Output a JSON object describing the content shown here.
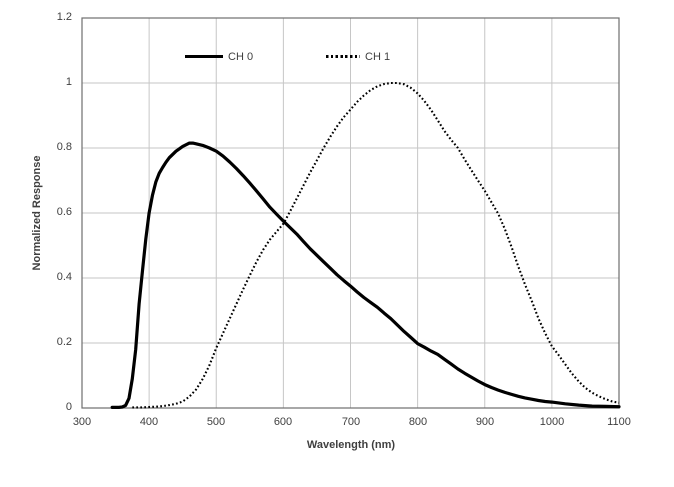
{
  "figure": {
    "background": "#ffffff",
    "text_color": "#3f3f3f",
    "grid_color": "#c6c6c6",
    "border_color": "#6e6e6e",
    "curve_color": "#000000"
  },
  "chart_data": {
    "type": "line",
    "title": "",
    "xlabel": "Wavelength (nm)",
    "ylabel": "Normalized Response",
    "xlim": [
      300,
      1100
    ],
    "ylim": [
      0,
      1.2
    ],
    "grid": true,
    "legend": {
      "position": "top-inside",
      "entries": [
        "CH 0",
        "CH 1"
      ]
    },
    "x_ticks": [
      300,
      400,
      500,
      600,
      700,
      800,
      900,
      1000,
      1100
    ],
    "x_tick_labels": [
      "300",
      "400",
      "500",
      "600",
      "700",
      "800",
      "900",
      "1000",
      "1100"
    ],
    "y_ticks": [
      0,
      0.2,
      0.4,
      0.6,
      0.8,
      1.0,
      1.2
    ],
    "y_tick_labels": [
      "0",
      "0.2",
      "0.4",
      "0.6",
      "0.8",
      "1",
      "1.2"
    ],
    "series": [
      {
        "name": "CH 0",
        "line_style": "solid",
        "color": "#000000",
        "x": [
          345,
          350,
          355,
          360,
          365,
          370,
          375,
          380,
          385,
          390,
          395,
          400,
          405,
          410,
          415,
          420,
          425,
          430,
          440,
          450,
          460,
          465,
          470,
          480,
          490,
          500,
          510,
          520,
          530,
          540,
          550,
          560,
          570,
          580,
          590,
          600,
          610,
          620,
          630,
          640,
          650,
          660,
          670,
          680,
          690,
          700,
          710,
          720,
          730,
          740,
          750,
          760,
          770,
          780,
          790,
          800,
          810,
          820,
          830,
          840,
          850,
          860,
          870,
          880,
          890,
          900,
          910,
          920,
          930,
          940,
          950,
          960,
          970,
          980,
          990,
          1000,
          1020,
          1040,
          1060,
          1080,
          1100
        ],
        "y": [
          0.002,
          0.002,
          0.002,
          0.003,
          0.008,
          0.03,
          0.09,
          0.18,
          0.32,
          0.42,
          0.52,
          0.6,
          0.655,
          0.695,
          0.722,
          0.74,
          0.756,
          0.77,
          0.79,
          0.805,
          0.815,
          0.815,
          0.813,
          0.808,
          0.8,
          0.79,
          0.775,
          0.757,
          0.737,
          0.715,
          0.692,
          0.668,
          0.643,
          0.618,
          0.596,
          0.575,
          0.555,
          0.535,
          0.512,
          0.49,
          0.47,
          0.45,
          0.43,
          0.41,
          0.392,
          0.375,
          0.357,
          0.34,
          0.325,
          0.31,
          0.292,
          0.275,
          0.255,
          0.235,
          0.217,
          0.198,
          0.187,
          0.175,
          0.165,
          0.15,
          0.135,
          0.12,
          0.107,
          0.095,
          0.083,
          0.072,
          0.063,
          0.055,
          0.048,
          0.042,
          0.036,
          0.031,
          0.027,
          0.023,
          0.02,
          0.018,
          0.013,
          0.009,
          0.006,
          0.005,
          0.004
        ],
        "peak": {
          "x": 460,
          "y": 0.815
        }
      },
      {
        "name": "CH 1",
        "line_style": "dotted",
        "color": "#000000",
        "x": [
          375,
          390,
          400,
          410,
          420,
          430,
          440,
          450,
          460,
          470,
          480,
          490,
          500,
          510,
          520,
          530,
          540,
          550,
          560,
          570,
          580,
          590,
          600,
          610,
          620,
          630,
          640,
          650,
          660,
          670,
          680,
          690,
          700,
          710,
          720,
          730,
          740,
          750,
          760,
          770,
          780,
          790,
          800,
          810,
          820,
          830,
          840,
          850,
          860,
          870,
          880,
          890,
          900,
          910,
          920,
          930,
          940,
          950,
          960,
          970,
          980,
          990,
          1000,
          1010,
          1020,
          1030,
          1040,
          1050,
          1060,
          1070,
          1080,
          1090,
          1100
        ],
        "y": [
          0.002,
          0.002,
          0.003,
          0.004,
          0.006,
          0.009,
          0.013,
          0.02,
          0.035,
          0.057,
          0.09,
          0.132,
          0.185,
          0.23,
          0.275,
          0.32,
          0.365,
          0.408,
          0.45,
          0.487,
          0.518,
          0.543,
          0.567,
          0.605,
          0.645,
          0.685,
          0.725,
          0.762,
          0.8,
          0.835,
          0.867,
          0.895,
          0.918,
          0.942,
          0.962,
          0.978,
          0.99,
          0.997,
          1.0,
          1.0,
          0.996,
          0.985,
          0.968,
          0.945,
          0.917,
          0.885,
          0.852,
          0.825,
          0.8,
          0.765,
          0.732,
          0.7,
          0.668,
          0.633,
          0.598,
          0.55,
          0.495,
          0.435,
          0.38,
          0.33,
          0.275,
          0.23,
          0.19,
          0.163,
          0.134,
          0.106,
          0.082,
          0.062,
          0.047,
          0.036,
          0.027,
          0.02,
          0.016
        ],
        "peak": {
          "x": 765,
          "y": 1.0
        }
      }
    ]
  }
}
